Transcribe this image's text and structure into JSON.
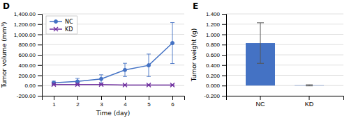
{
  "chart_data": [
    {
      "type": "line",
      "title": "D",
      "x": [
        1,
        2,
        3,
        4,
        5,
        6
      ],
      "xlabel": "Time (day)",
      "ylabel": "Tumor volume (mm³)",
      "xlim": [
        0.5,
        6.5
      ],
      "xticks": [
        1,
        2,
        3,
        4,
        5,
        6
      ],
      "ylim": [
        -200,
        1400
      ],
      "yticks": [
        {
          "value": -200,
          "label": "-200.00"
        },
        {
          "value": 0,
          "label": "0.00"
        },
        {
          "value": 200,
          "label": "200.00"
        },
        {
          "value": 400,
          "label": "400.00"
        },
        {
          "value": 600,
          "label": "600.00"
        },
        {
          "value": 800,
          "label": "800.00"
        },
        {
          "value": 1000,
          "label": "1,000.00"
        },
        {
          "value": 1200,
          "label": "1,200.00"
        },
        {
          "value": 1400,
          "label": "1,400.00"
        }
      ],
      "grid": true,
      "legend": "upper left",
      "series": [
        {
          "name": "NC",
          "color": "#4472C4",
          "marker": "circle",
          "values": [
            55,
            80,
            130,
            305,
            395,
            830
          ],
          "errors": [
            30,
            60,
            80,
            130,
            220,
            400
          ]
        },
        {
          "name": "KD",
          "color": "#7030A0",
          "marker": "x",
          "values": [
            20,
            20,
            20,
            10,
            10,
            10
          ],
          "errors": [
            10,
            10,
            10,
            5,
            5,
            5
          ]
        }
      ]
    },
    {
      "type": "bar",
      "title": "E",
      "categories": [
        "NC",
        "KD"
      ],
      "values": [
        0.83,
        0.005
      ],
      "errors": [
        0.396,
        0.011
      ],
      "color": "#4472C4",
      "ylabel": "Tumor weight (g)",
      "ylim": [
        -0.2,
        1.4
      ],
      "yticks": [
        {
          "value": -0.2,
          "label": "-0.200"
        },
        {
          "value": 0,
          "label": "0.000"
        },
        {
          "value": 0.2,
          "label": "0.200"
        },
        {
          "value": 0.4,
          "label": "0.400"
        },
        {
          "value": 0.6,
          "label": "0.600"
        },
        {
          "value": 0.8,
          "label": "0.800"
        },
        {
          "value": 1,
          "label": "1.000"
        },
        {
          "value": 1.2,
          "label": "1.200"
        },
        {
          "value": 1.4,
          "label": "1.400"
        }
      ],
      "grid": true
    }
  ]
}
